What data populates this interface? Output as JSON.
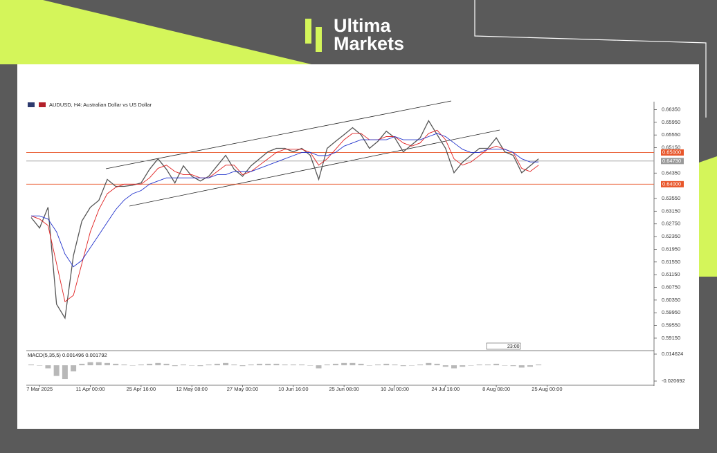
{
  "brand": {
    "line1": "Ultima",
    "line2": "Markets"
  },
  "chart_data": {
    "type": "line",
    "title": "AUDUSD, H4:  Australian Dollar vs US Dollar",
    "categories": [
      null,
      "7 Mar 2025",
      null,
      null,
      null,
      null,
      null,
      "11 Apr 00:00",
      null,
      null,
      null,
      null,
      null,
      "25 Apr 16:00",
      null,
      null,
      null,
      null,
      null,
      "12 May 08:00",
      null,
      null,
      null,
      null,
      null,
      "27 May 00:00",
      null,
      null,
      null,
      null,
      null,
      "10 Jun 16:00",
      null,
      null,
      null,
      null,
      null,
      "25 Jun 08:00",
      null,
      null,
      null,
      null,
      null,
      "10 Jul 00:00",
      null,
      null,
      null,
      null,
      null,
      "24 Jul 16:00",
      null,
      null,
      null,
      null,
      null,
      "8 Aug 08:00",
      null,
      null,
      null,
      null,
      null,
      "25 Aug 00:00"
    ],
    "series": [
      {
        "color": "#555555",
        "values": [
          0.6295,
          0.6262,
          0.6327,
          0.6022,
          0.5978,
          0.6175,
          0.6284,
          0.6327,
          0.6349,
          0.6415,
          0.6393,
          0.6393,
          0.6397,
          0.6404,
          0.6447,
          0.648,
          0.6447,
          0.6404,
          0.6458,
          0.6425,
          0.641,
          0.6425,
          0.6458,
          0.6491,
          0.6447,
          0.6425,
          0.6458,
          0.648,
          0.6502,
          0.6513,
          0.6513,
          0.6502,
          0.6513,
          0.6491,
          0.6415,
          0.6513,
          0.6535,
          0.6556,
          0.6578,
          0.6556,
          0.6513,
          0.6535,
          0.6567,
          0.6546,
          0.6502,
          0.6524,
          0.6546,
          0.66,
          0.6556,
          0.6513,
          0.6436,
          0.6469,
          0.6491,
          0.6513,
          0.6513,
          0.6546,
          0.6502,
          0.6491,
          0.6436,
          0.6458,
          0.648,
          null
        ]
      },
      {
        "color": "#e02020",
        "values": [
          0.63,
          0.629,
          0.627,
          0.615,
          0.603,
          0.605,
          0.615,
          0.625,
          0.632,
          0.637,
          0.639,
          0.64,
          0.64,
          0.64,
          0.642,
          0.645,
          0.646,
          0.644,
          0.643,
          0.643,
          0.642,
          0.642,
          0.644,
          0.646,
          0.646,
          0.643,
          0.644,
          0.646,
          0.648,
          0.65,
          0.651,
          0.651,
          0.651,
          0.65,
          0.646,
          0.648,
          0.651,
          0.654,
          0.656,
          0.656,
          0.654,
          0.654,
          0.655,
          0.655,
          0.653,
          0.652,
          0.653,
          0.656,
          0.657,
          0.654,
          0.648,
          0.646,
          0.647,
          0.649,
          0.651,
          0.652,
          0.651,
          0.65,
          0.645,
          0.644,
          0.646,
          null
        ]
      },
      {
        "color": "#2233cc",
        "values": [
          0.63,
          0.63,
          0.629,
          0.625,
          0.618,
          0.614,
          0.616,
          0.62,
          0.624,
          0.628,
          0.632,
          0.635,
          0.637,
          0.638,
          0.64,
          0.641,
          0.642,
          0.642,
          0.642,
          0.642,
          0.642,
          0.642,
          0.643,
          0.643,
          0.644,
          0.644,
          0.644,
          0.645,
          0.646,
          0.647,
          0.648,
          0.649,
          0.65,
          0.65,
          0.649,
          0.649,
          0.65,
          0.652,
          0.653,
          0.654,
          0.654,
          0.654,
          0.654,
          0.655,
          0.654,
          0.654,
          0.654,
          0.655,
          0.656,
          0.655,
          0.653,
          0.651,
          0.65,
          0.65,
          0.651,
          0.651,
          0.651,
          0.65,
          0.648,
          0.647,
          0.647,
          null
        ]
      }
    ],
    "ylim": [
      0.588,
      0.666
    ],
    "yticks": [
      {
        "value": 0.6635,
        "label": "0.66350"
      },
      {
        "value": 0.6595,
        "label": "0.65950"
      },
      {
        "value": 0.6555,
        "label": "0.65550"
      },
      {
        "value": 0.6515,
        "label": "0.65150"
      },
      {
        "value": 0.6435,
        "label": "0.64350"
      },
      {
        "value": 0.6355,
        "label": "0.63550"
      },
      {
        "value": 0.6315,
        "label": "0.63150"
      },
      {
        "value": 0.6275,
        "label": "0.62750"
      },
      {
        "value": 0.6235,
        "label": "0.62350"
      },
      {
        "value": 0.6195,
        "label": "0.61950"
      },
      {
        "value": 0.6155,
        "label": "0.61550"
      },
      {
        "value": 0.6115,
        "label": "0.61150"
      },
      {
        "value": 0.6075,
        "label": "0.60750"
      },
      {
        "value": 0.6035,
        "label": "0.60350"
      },
      {
        "value": 0.5995,
        "label": "0.59950"
      },
      {
        "value": 0.5955,
        "label": "0.59550"
      },
      {
        "value": 0.5915,
        "label": "0.59150"
      }
    ],
    "hlines": [
      {
        "value": 0.65,
        "label": "0.65000",
        "color": "#e8562a"
      },
      {
        "value": 0.6473,
        "label": "0.64730",
        "color": "#9a9a9a"
      },
      {
        "value": 0.64,
        "label": "0.64000",
        "color": "#e8562a"
      }
    ],
    "time_marker": "23:00",
    "indicator": {
      "type": "bar",
      "title": "MACD(5,35,5) 0.001496 0.001792",
      "color": "#b8b8b8",
      "values": [
        0.001,
        0.0,
        -0.004,
        -0.014,
        -0.018,
        -0.008,
        0.002,
        0.004,
        0.004,
        0.003,
        0.002,
        0.001,
        0.0,
        0.001,
        0.002,
        0.003,
        0.002,
        -0.001,
        0.001,
        0.0,
        -0.001,
        0.001,
        0.002,
        0.003,
        0.001,
        -0.001,
        0.001,
        0.002,
        0.002,
        0.002,
        0.001,
        0.001,
        0.001,
        0.0,
        -0.004,
        0.001,
        0.002,
        0.003,
        0.003,
        0.002,
        0.0,
        0.001,
        0.002,
        0.001,
        -0.001,
        0.0,
        0.001,
        0.003,
        0.002,
        -0.002,
        -0.004,
        -0.002,
        0.0,
        0.001,
        0.001,
        0.002,
        0.0,
        -0.001,
        -0.003,
        -0.002,
        0.001,
        null
      ],
      "ylim": [
        -0.020692,
        0.014624
      ],
      "yticks": [
        0.014624,
        -0.020692
      ]
    }
  }
}
